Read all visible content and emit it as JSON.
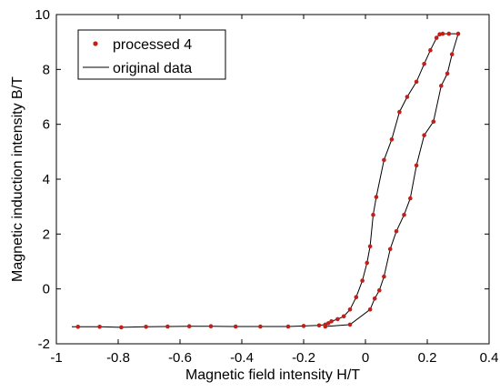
{
  "chart_data": {
    "type": "line",
    "title": "",
    "xlabel": "Magnetic field intensity H/T",
    "ylabel": "Magnetic induction intensity B/T",
    "xlim": [
      -1,
      0.4
    ],
    "ylim": [
      -2,
      10
    ],
    "xticks": [
      "-1",
      "-0.8",
      "-0.6",
      "-0.4",
      "-0.2",
      "0",
      "0.2",
      "0.4"
    ],
    "xtick_values": [
      -1,
      -0.8,
      -0.6,
      -0.4,
      -0.2,
      0,
      0.2,
      0.4
    ],
    "yticks": [
      "-2",
      "0",
      "2",
      "4",
      "6",
      "8",
      "10"
    ],
    "ytick_values": [
      -2,
      0,
      2,
      4,
      6,
      8,
      10
    ],
    "grid": false,
    "legend_position": "top-left",
    "series": [
      {
        "name": "processed 4",
        "style": "markers",
        "color": "#c0201a",
        "x": [
          -0.93,
          -0.86,
          -0.79,
          -0.71,
          -0.64,
          -0.57,
          -0.5,
          -0.42,
          -0.34,
          -0.25,
          -0.2,
          -0.15,
          -0.13,
          -0.12,
          -0.11,
          -0.09,
          -0.07,
          -0.05,
          -0.03,
          -0.01,
          0.005,
          0.015,
          0.025,
          0.035,
          0.06,
          0.085,
          0.11,
          0.135,
          0.165,
          0.19,
          0.21,
          0.23,
          0.24,
          0.25,
          0.27,
          0.3,
          0.28,
          0.265,
          0.245,
          0.22,
          0.19,
          0.165,
          0.145,
          0.125,
          0.1,
          0.08,
          0.06,
          0.045,
          0.03,
          0.015,
          -0.05,
          -0.13
        ],
        "y": [
          -1.38,
          -1.38,
          -1.4,
          -1.38,
          -1.37,
          -1.36,
          -1.36,
          -1.37,
          -1.37,
          -1.37,
          -1.35,
          -1.33,
          -1.3,
          -1.25,
          -1.18,
          -1.1,
          -1.0,
          -0.75,
          -0.3,
          0.3,
          0.95,
          1.55,
          2.7,
          3.35,
          4.7,
          5.45,
          6.45,
          7.0,
          7.55,
          8.2,
          8.7,
          9.15,
          9.28,
          9.3,
          9.3,
          9.3,
          8.55,
          7.85,
          7.4,
          6.1,
          5.6,
          4.5,
          3.3,
          2.7,
          2.1,
          1.45,
          0.45,
          -0.05,
          -0.35,
          -0.75,
          -1.3,
          -1.37
        ]
      },
      {
        "name": "original data",
        "style": "line",
        "color": "#000000",
        "x": [
          -0.95,
          -0.86,
          -0.79,
          -0.71,
          -0.64,
          -0.57,
          -0.5,
          -0.42,
          -0.34,
          -0.25,
          -0.2,
          -0.15,
          -0.13,
          -0.12,
          -0.11,
          -0.09,
          -0.07,
          -0.05,
          -0.03,
          -0.01,
          0.005,
          0.015,
          0.025,
          0.035,
          0.06,
          0.085,
          0.11,
          0.135,
          0.165,
          0.19,
          0.21,
          0.23,
          0.24,
          0.25,
          0.27,
          0.3,
          0.28,
          0.265,
          0.245,
          0.22,
          0.19,
          0.165,
          0.145,
          0.125,
          0.1,
          0.08,
          0.06,
          0.045,
          0.03,
          0.015,
          -0.05,
          -0.13
        ],
        "y": [
          -1.38,
          -1.38,
          -1.4,
          -1.38,
          -1.37,
          -1.36,
          -1.36,
          -1.37,
          -1.37,
          -1.37,
          -1.35,
          -1.33,
          -1.3,
          -1.25,
          -1.18,
          -1.1,
          -1.0,
          -0.75,
          -0.3,
          0.3,
          0.95,
          1.55,
          2.7,
          3.35,
          4.7,
          5.45,
          6.45,
          7.0,
          7.55,
          8.2,
          8.7,
          9.15,
          9.28,
          9.3,
          9.3,
          9.3,
          8.55,
          7.85,
          7.4,
          6.1,
          5.6,
          4.5,
          3.3,
          2.7,
          2.1,
          1.45,
          0.45,
          -0.05,
          -0.35,
          -0.75,
          -1.3,
          -1.37
        ]
      }
    ]
  }
}
